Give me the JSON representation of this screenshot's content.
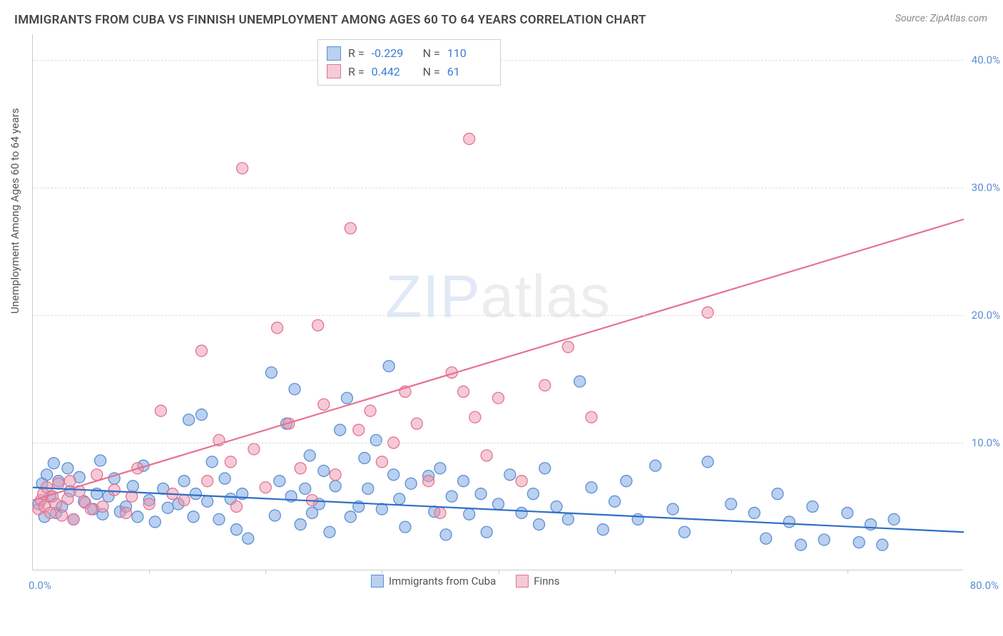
{
  "title": "IMMIGRANTS FROM CUBA VS FINNISH UNEMPLOYMENT AMONG AGES 60 TO 64 YEARS CORRELATION CHART",
  "source": "Source: ZipAtlas.com",
  "ylabel": "Unemployment Among Ages 60 to 64 years",
  "watermark_a": "ZIP",
  "watermark_b": "atlas",
  "chart": {
    "type": "scatter",
    "background_color": "#ffffff",
    "grid_color": "#dcdcdc",
    "axis_color": "#cccccc",
    "tick_color": "#5b8fd6",
    "xlim": [
      0,
      80
    ],
    "ylim": [
      0,
      42
    ],
    "ytick_step": 10,
    "xtick_marks": [
      10,
      20,
      30,
      40,
      50,
      60,
      70
    ],
    "xtick_origin": "0.0%",
    "xtick_max": "80.0%",
    "ytick_labels": {
      "10": "10.0%",
      "20": "20.0%",
      "30": "30.0%",
      "40": "40.0%"
    },
    "point_radius": 8,
    "series_blue": {
      "label": "Immigrants from Cuba",
      "fill": "rgba(130,170,225,0.55)",
      "stroke": "#5b8fd6",
      "line_color": "#2f6fc4",
      "line_width": 2.2,
      "r": "-0.229",
      "n": "110",
      "trend": {
        "x1": 0,
        "y1": 6.5,
        "x2": 80,
        "y2": 3.0
      },
      "points": [
        [
          0.5,
          5.2
        ],
        [
          0.8,
          6.8
        ],
        [
          1.0,
          4.2
        ],
        [
          1.2,
          7.5
        ],
        [
          1.5,
          5.8
        ],
        [
          1.8,
          8.4
        ],
        [
          2.0,
          4.5
        ],
        [
          2.2,
          7.0
        ],
        [
          2.5,
          5.0
        ],
        [
          3.0,
          8.0
        ],
        [
          3.2,
          6.2
        ],
        [
          3.5,
          4.0
        ],
        [
          4.0,
          7.3
        ],
        [
          4.4,
          5.4
        ],
        [
          5.2,
          4.8
        ],
        [
          5.5,
          6.0
        ],
        [
          5.8,
          8.6
        ],
        [
          6.0,
          4.4
        ],
        [
          6.5,
          5.8
        ],
        [
          7.0,
          7.2
        ],
        [
          7.5,
          4.6
        ],
        [
          8.0,
          5.0
        ],
        [
          8.6,
          6.6
        ],
        [
          9.0,
          4.2
        ],
        [
          9.5,
          8.2
        ],
        [
          10.0,
          5.5
        ],
        [
          10.5,
          3.8
        ],
        [
          11.2,
          6.4
        ],
        [
          11.6,
          4.9
        ],
        [
          12.5,
          5.2
        ],
        [
          13.0,
          7.0
        ],
        [
          13.4,
          11.8
        ],
        [
          13.8,
          4.2
        ],
        [
          14.0,
          6.0
        ],
        [
          14.5,
          12.2
        ],
        [
          15.0,
          5.4
        ],
        [
          15.4,
          8.5
        ],
        [
          16.0,
          4.0
        ],
        [
          16.5,
          7.2
        ],
        [
          17.0,
          5.6
        ],
        [
          17.5,
          3.2
        ],
        [
          18.0,
          6.0
        ],
        [
          18.5,
          2.5
        ],
        [
          20.5,
          15.5
        ],
        [
          20.8,
          4.3
        ],
        [
          21.2,
          7.0
        ],
        [
          21.8,
          11.5
        ],
        [
          22.2,
          5.8
        ],
        [
          22.5,
          14.2
        ],
        [
          23.0,
          3.6
        ],
        [
          23.4,
          6.4
        ],
        [
          23.8,
          9.0
        ],
        [
          24.0,
          4.5
        ],
        [
          24.6,
          5.2
        ],
        [
          25.0,
          7.8
        ],
        [
          25.5,
          3.0
        ],
        [
          26.0,
          6.6
        ],
        [
          26.4,
          11.0
        ],
        [
          27.0,
          13.5
        ],
        [
          27.3,
          4.2
        ],
        [
          28.0,
          5.0
        ],
        [
          28.5,
          8.8
        ],
        [
          28.8,
          6.4
        ],
        [
          29.5,
          10.2
        ],
        [
          30.0,
          4.8
        ],
        [
          30.6,
          16.0
        ],
        [
          31.0,
          7.5
        ],
        [
          31.5,
          5.6
        ],
        [
          32.0,
          3.4
        ],
        [
          32.5,
          6.8
        ],
        [
          34.0,
          7.4
        ],
        [
          34.5,
          4.6
        ],
        [
          35.0,
          8.0
        ],
        [
          35.5,
          2.8
        ],
        [
          36.0,
          5.8
        ],
        [
          37.0,
          7.0
        ],
        [
          37.5,
          4.4
        ],
        [
          38.5,
          6.0
        ],
        [
          39.0,
          3.0
        ],
        [
          40.0,
          5.2
        ],
        [
          41.0,
          7.5
        ],
        [
          42.0,
          4.5
        ],
        [
          43.0,
          6.0
        ],
        [
          43.5,
          3.6
        ],
        [
          44.0,
          8.0
        ],
        [
          45.0,
          5.0
        ],
        [
          46.0,
          4.0
        ],
        [
          47.0,
          14.8
        ],
        [
          48.0,
          6.5
        ],
        [
          49.0,
          3.2
        ],
        [
          50.0,
          5.4
        ],
        [
          51.0,
          7.0
        ],
        [
          52.0,
          4.0
        ],
        [
          53.5,
          8.2
        ],
        [
          55.0,
          4.8
        ],
        [
          56.0,
          3.0
        ],
        [
          58.0,
          8.5
        ],
        [
          60.0,
          5.2
        ],
        [
          62.0,
          4.5
        ],
        [
          63.0,
          2.5
        ],
        [
          64.0,
          6.0
        ],
        [
          65.0,
          3.8
        ],
        [
          66.0,
          2.0
        ],
        [
          67.0,
          5.0
        ],
        [
          68.0,
          2.4
        ],
        [
          70.0,
          4.5
        ],
        [
          71.0,
          2.2
        ],
        [
          72.0,
          3.6
        ],
        [
          73.0,
          2.0
        ],
        [
          74.0,
          4.0
        ]
      ]
    },
    "series_pink": {
      "label": "Finns",
      "fill": "rgba(235,150,175,0.50)",
      "stroke": "#e5738f",
      "line_color": "#e5738f",
      "line_width": 2.2,
      "r": "0.442",
      "n": "61",
      "trend": {
        "x1": 0,
        "y1": 5.5,
        "x2": 80,
        "y2": 27.5
      },
      "points": [
        [
          0.5,
          4.8
        ],
        [
          0.7,
          5.5
        ],
        [
          0.9,
          6.0
        ],
        [
          1.0,
          5.0
        ],
        [
          1.2,
          6.5
        ],
        [
          1.5,
          4.5
        ],
        [
          1.7,
          5.8
        ],
        [
          2.0,
          5.2
        ],
        [
          2.2,
          6.8
        ],
        [
          2.5,
          4.3
        ],
        [
          3.0,
          5.6
        ],
        [
          3.2,
          7.0
        ],
        [
          3.5,
          4.0
        ],
        [
          4.0,
          6.2
        ],
        [
          4.5,
          5.3
        ],
        [
          5.0,
          4.8
        ],
        [
          5.5,
          7.5
        ],
        [
          6.0,
          5.0
        ],
        [
          7.0,
          6.3
        ],
        [
          8.0,
          4.5
        ],
        [
          8.5,
          5.8
        ],
        [
          9.0,
          8.0
        ],
        [
          10.0,
          5.2
        ],
        [
          11.0,
          12.5
        ],
        [
          12.0,
          6.0
        ],
        [
          13.0,
          5.5
        ],
        [
          14.5,
          17.2
        ],
        [
          15.0,
          7.0
        ],
        [
          16.0,
          10.2
        ],
        [
          17.0,
          8.5
        ],
        [
          17.5,
          5.0
        ],
        [
          18.0,
          31.5
        ],
        [
          19.0,
          9.5
        ],
        [
          20.0,
          6.5
        ],
        [
          21.0,
          19.0
        ],
        [
          22.0,
          11.5
        ],
        [
          23.0,
          8.0
        ],
        [
          24.0,
          5.5
        ],
        [
          24.5,
          19.2
        ],
        [
          25.0,
          13.0
        ],
        [
          26.0,
          7.5
        ],
        [
          27.3,
          26.8
        ],
        [
          28.0,
          11.0
        ],
        [
          29.0,
          12.5
        ],
        [
          30.0,
          8.5
        ],
        [
          31.0,
          10.0
        ],
        [
          32.0,
          14.0
        ],
        [
          33.0,
          11.5
        ],
        [
          34.0,
          7.0
        ],
        [
          35.0,
          4.5
        ],
        [
          36.0,
          15.5
        ],
        [
          37.0,
          14.0
        ],
        [
          37.5,
          33.8
        ],
        [
          38.0,
          12.0
        ],
        [
          39.0,
          9.0
        ],
        [
          40.0,
          13.5
        ],
        [
          42.0,
          7.0
        ],
        [
          44.0,
          14.5
        ],
        [
          46.0,
          17.5
        ],
        [
          58.0,
          20.2
        ],
        [
          48.0,
          12.0
        ]
      ]
    },
    "bottom_legend": [
      {
        "label": "Immigrants from Cuba",
        "fill": "rgba(130,170,225,0.55)",
        "stroke": "#5b8fd6"
      },
      {
        "label": "Finns",
        "fill": "rgba(235,150,175,0.50)",
        "stroke": "#e5738f"
      }
    ]
  }
}
